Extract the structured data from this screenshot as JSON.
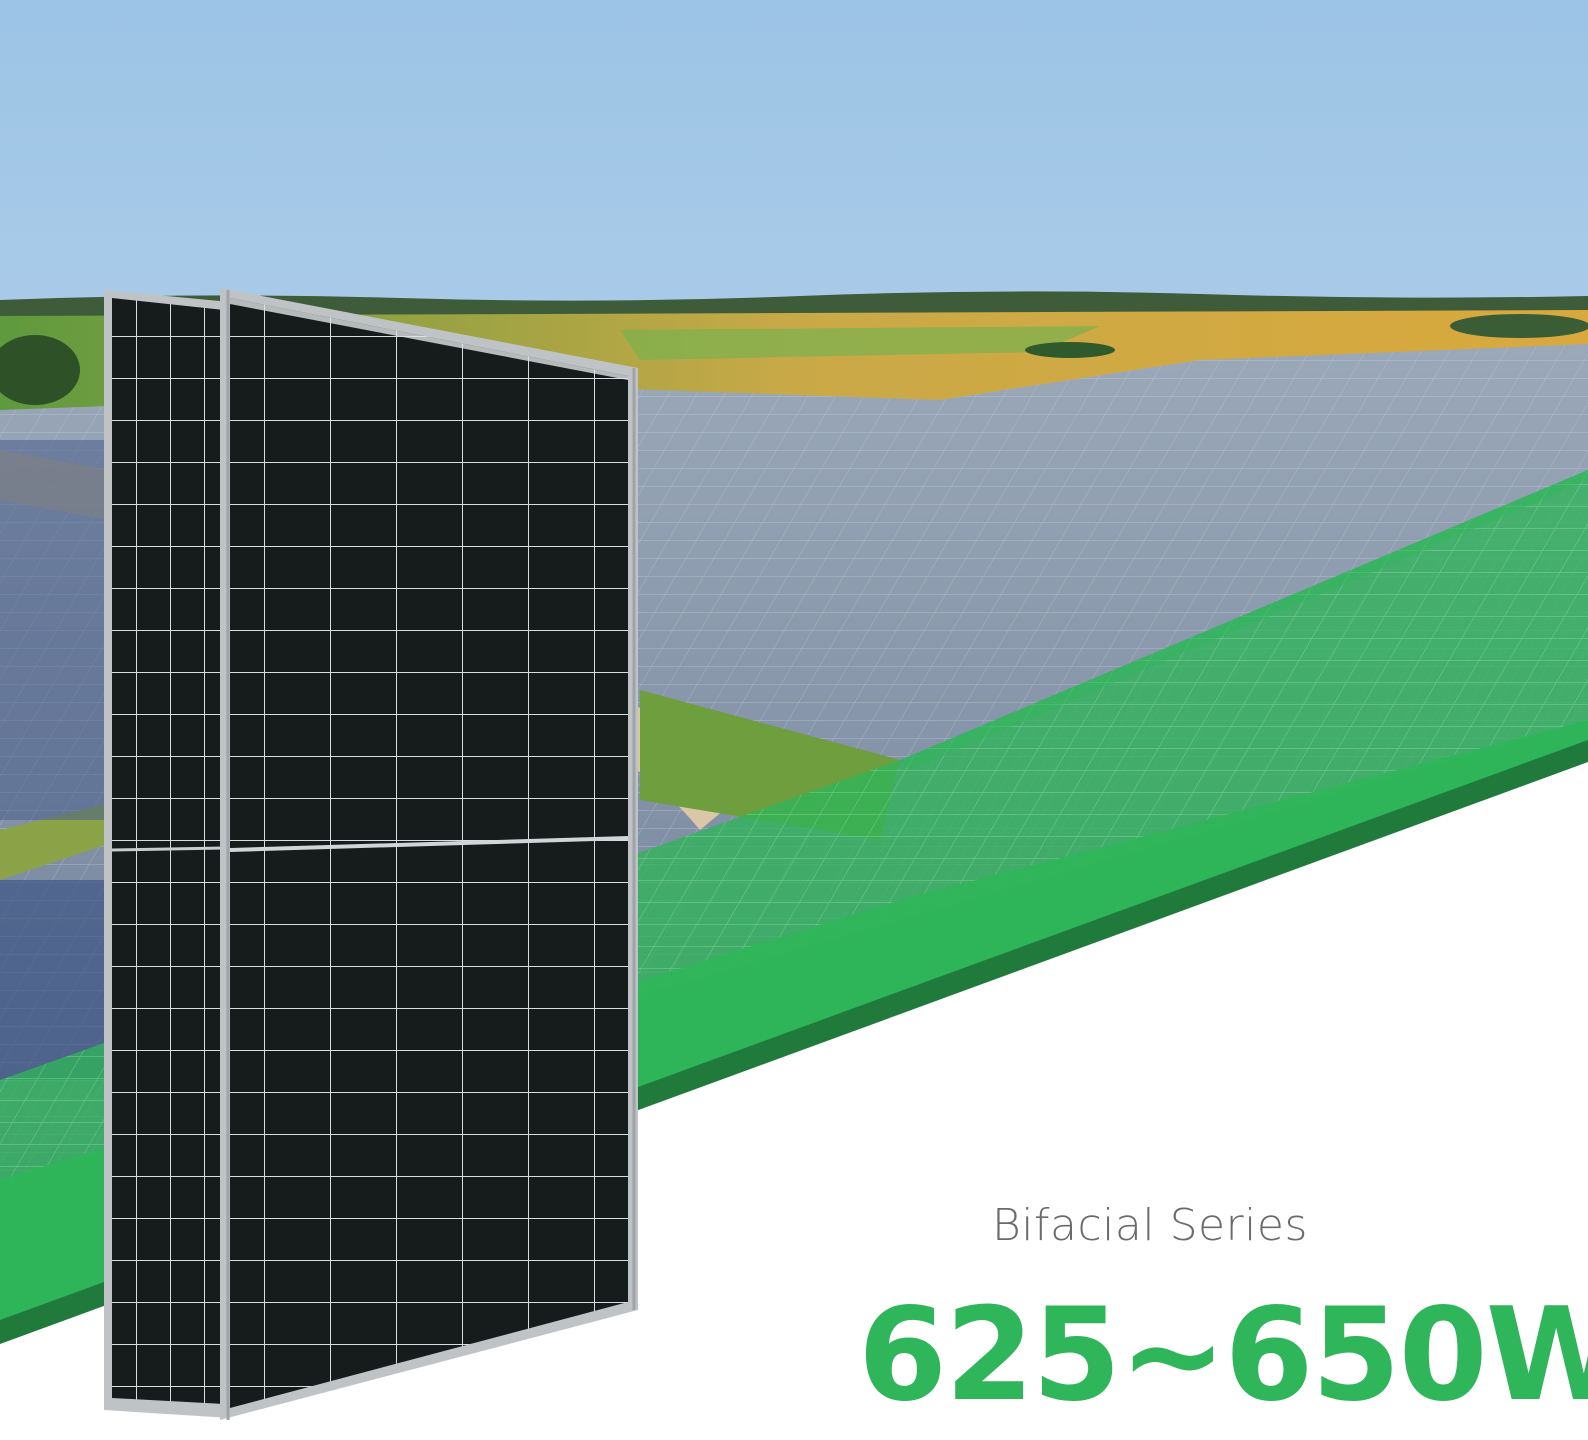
{
  "banner": {
    "series_label": "Bifacial Series",
    "power_range": "625~650W"
  },
  "colors": {
    "accent_green": "#2fb55a",
    "dark_green": "#1f7a3c",
    "panel_cell": "#161b1c",
    "panel_frame": "#bfc3c6",
    "sky_top": "#9cc4e6",
    "sky_bottom": "#d9e6ee"
  },
  "illustration": {
    "subject": "solar-farm-aerial-photo",
    "product": "two-bifacial-solar-modules"
  }
}
